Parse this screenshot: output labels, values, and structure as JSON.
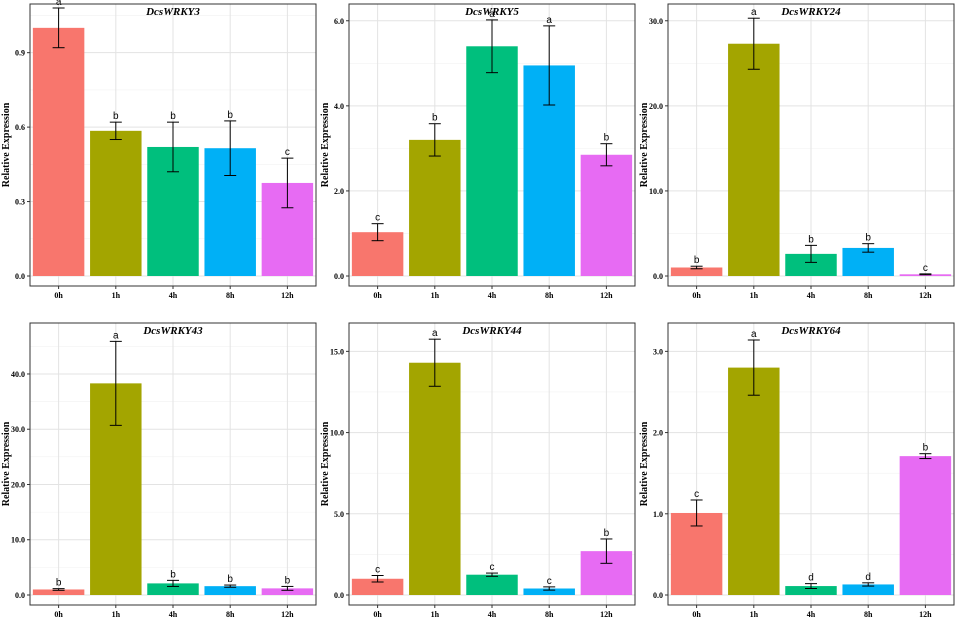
{
  "figure": {
    "colors": [
      "#f8766d",
      "#a3a500",
      "#00bf7d",
      "#00b0f6",
      "#e76bf3"
    ]
  },
  "chart_data": [
    {
      "type": "bar",
      "title": "DcsWRKY3",
      "ylabel": "Relative Expression",
      "categories": [
        "0h",
        "1h",
        "4h",
        "8h",
        "12h"
      ],
      "values": [
        1.0,
        0.585,
        0.52,
        0.515,
        0.375
      ],
      "errors": [
        0.08,
        0.035,
        0.1,
        0.11,
        0.1
      ],
      "letters": [
        "a",
        "b",
        "b",
        "b",
        "c"
      ],
      "ylim": [
        0,
        1.08
      ],
      "yticks": [
        0,
        0.3,
        0.6,
        0.9
      ],
      "ytick_labels": [
        "0.0",
        "0.3",
        "0.6",
        "0.9"
      ]
    },
    {
      "type": "bar",
      "title": "DcsWRKY5",
      "ylabel": "Relative Expression",
      "categories": [
        "0h",
        "1h",
        "4h",
        "8h",
        "12h"
      ],
      "values": [
        1.03,
        3.2,
        5.4,
        4.95,
        2.85
      ],
      "errors": [
        0.2,
        0.38,
        0.62,
        0.93,
        0.26
      ],
      "letters": [
        "c",
        "b",
        "a",
        "a",
        "b"
      ],
      "ylim": [
        0,
        6.3
      ],
      "yticks": [
        0,
        2,
        4,
        6
      ],
      "ytick_labels": [
        "0.0",
        "2.0",
        "4.0",
        "6.0"
      ]
    },
    {
      "type": "bar",
      "title": "DcsWRKY24",
      "ylabel": "Relative Expression",
      "categories": [
        "0h",
        "1h",
        "4h",
        "8h",
        "12h"
      ],
      "values": [
        1.0,
        27.3,
        2.6,
        3.3,
        0.2
      ],
      "errors": [
        0.15,
        3.0,
        1.0,
        0.5,
        0.05
      ],
      "letters": [
        "b",
        "a",
        "b",
        "b",
        "c"
      ],
      "ylim": [
        0,
        31.5
      ],
      "yticks": [
        0,
        10,
        20,
        30
      ],
      "ytick_labels": [
        "0.0",
        "10.0",
        "20.0",
        "30.0"
      ]
    },
    {
      "type": "bar",
      "title": "DcsWRKY43",
      "ylabel": "Relative Expression",
      "categories": [
        "0h",
        "1h",
        "4h",
        "8h",
        "12h"
      ],
      "values": [
        1.0,
        38.3,
        2.1,
        1.6,
        1.2
      ],
      "errors": [
        0.15,
        7.6,
        0.55,
        0.2,
        0.35
      ],
      "letters": [
        "b",
        "a",
        "b",
        "b",
        "b"
      ],
      "ylim": [
        0,
        48.5
      ],
      "yticks": [
        0,
        10,
        20,
        30,
        40
      ],
      "ytick_labels": [
        "0.0",
        "10.0",
        "20.0",
        "30.0",
        "40.0"
      ]
    },
    {
      "type": "bar",
      "title": "DcsWRKY44",
      "ylabel": "Relative Expression",
      "categories": [
        "0h",
        "1h",
        "4h",
        "8h",
        "12h"
      ],
      "values": [
        1.0,
        14.3,
        1.25,
        0.4,
        2.7
      ],
      "errors": [
        0.2,
        1.45,
        0.1,
        0.1,
        0.75
      ],
      "letters": [
        "c",
        "a",
        "c",
        "c",
        "b"
      ],
      "ylim": [
        0,
        16.5
      ],
      "yticks": [
        0,
        5,
        10,
        15
      ],
      "ytick_labels": [
        "0.0",
        "5.0",
        "10.0",
        "15.0"
      ]
    },
    {
      "type": "bar",
      "title": "DcsWRKY64",
      "ylabel": "Relative Expression",
      "categories": [
        "0h",
        "1h",
        "4h",
        "8h",
        "12h"
      ],
      "values": [
        1.01,
        2.8,
        0.11,
        0.13,
        1.71
      ],
      "errors": [
        0.16,
        0.34,
        0.03,
        0.02,
        0.03
      ],
      "letters": [
        "c",
        "a",
        "d",
        "d",
        "b"
      ],
      "ylim": [
        0,
        3.3
      ],
      "yticks": [
        0,
        1,
        2,
        3
      ],
      "ytick_labels": [
        "0.0",
        "1.0",
        "2.0",
        "3.0"
      ]
    }
  ]
}
